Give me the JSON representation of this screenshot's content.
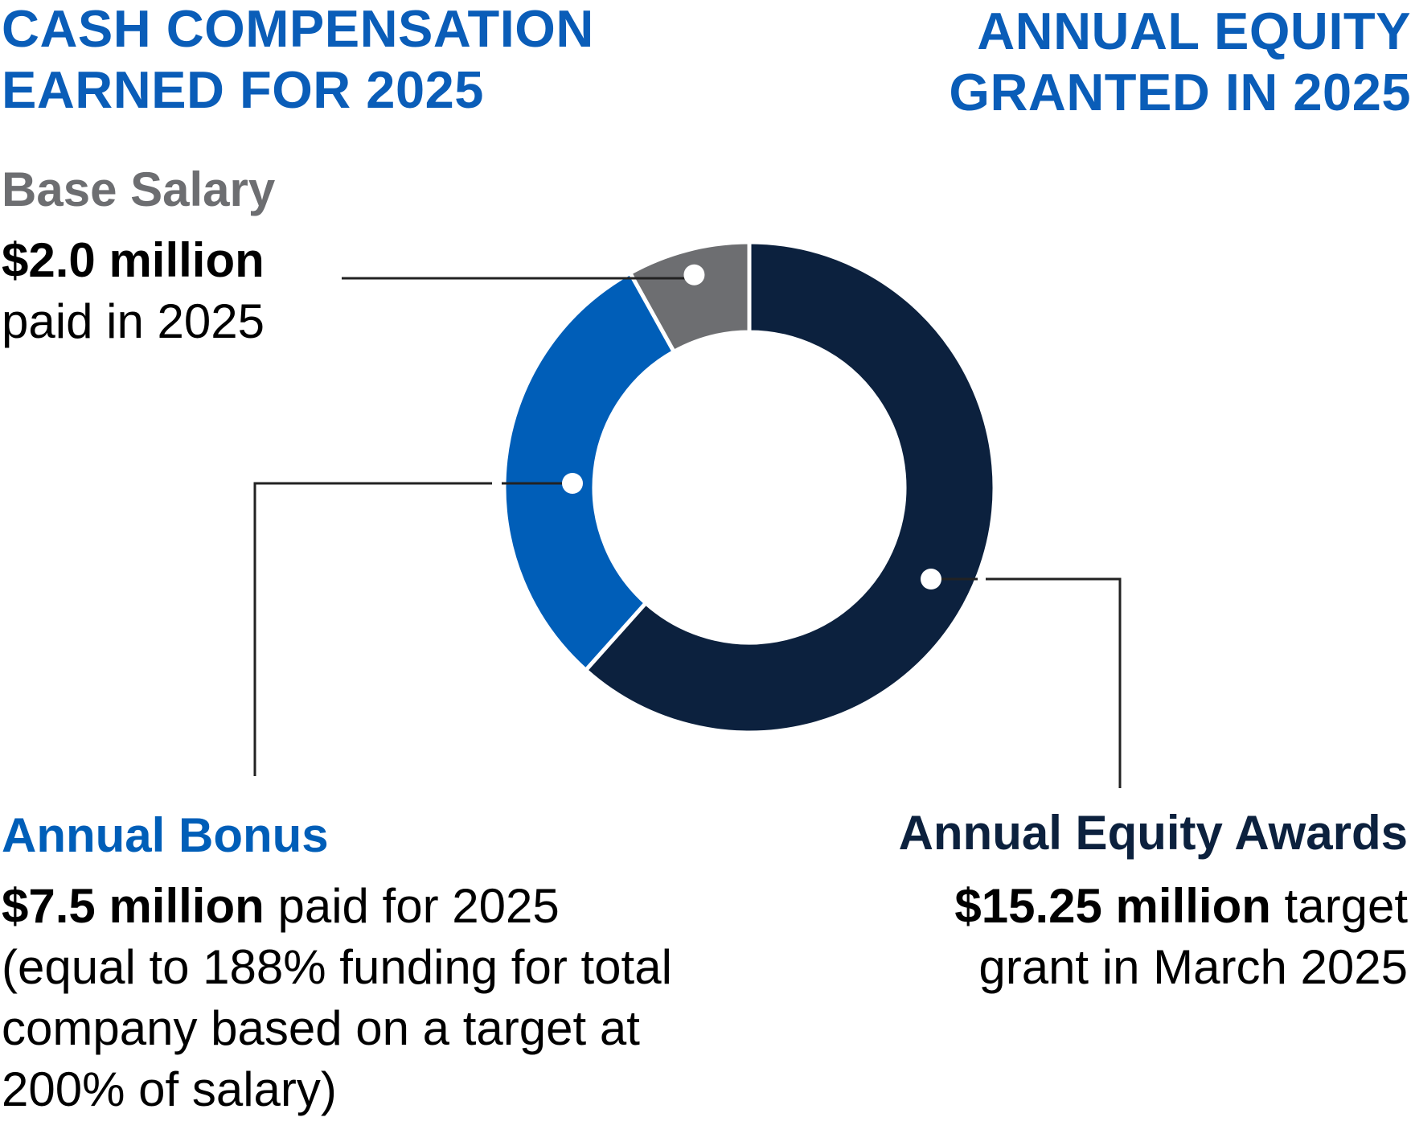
{
  "colors": {
    "heading": "#0a5db8",
    "base_salary": "#6d6e71",
    "annual_bonus": "#005eb8",
    "equity": "#0c213e",
    "text": "#000000",
    "leader": "#222222"
  },
  "headings": {
    "left_line1": "CASH COMPENSATION",
    "left_line2": "EARNED FOR 2025",
    "right_line1": "ANNUAL EQUITY",
    "right_line2": "GRANTED IN 2025"
  },
  "chart_data": {
    "type": "pie",
    "style": "donut",
    "units": "$ million",
    "series": [
      {
        "name": "Base Salary",
        "value": 2.0
      },
      {
        "name": "Annual Bonus",
        "value": 7.5
      },
      {
        "name": "Annual Equity Awards",
        "value": 15.25
      }
    ]
  },
  "labels": {
    "base_salary": {
      "title": "Base Salary",
      "amount": "$2.0 million",
      "detail": "paid in 2025"
    },
    "annual_bonus": {
      "title": "Annual Bonus",
      "amount": "$7.5 million",
      "detail_1": " paid for 2025",
      "detail_2": "(equal to 188% funding for total",
      "detail_3": "company based on a target at",
      "detail_4": "200% of salary)"
    },
    "equity": {
      "title": "Annual Equity Awards",
      "amount": "$15.25 million",
      "detail_1": " target",
      "detail_2": "grant in March 2025"
    }
  }
}
